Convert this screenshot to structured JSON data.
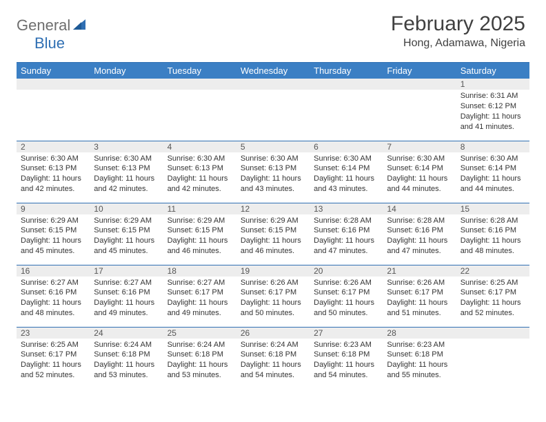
{
  "brand": {
    "part1": "General",
    "part2": "Blue"
  },
  "title": "February 2025",
  "location": "Hong, Adamawa, Nigeria",
  "colors": {
    "header_bg": "#3b7fc4",
    "header_text": "#ffffff",
    "rule": "#2f6fb3",
    "daynum_bg": "#ededed",
    "text": "#333333",
    "logo_gray": "#6e6e6e",
    "logo_blue": "#2f6fb3"
  },
  "day_headers": [
    "Sunday",
    "Monday",
    "Tuesday",
    "Wednesday",
    "Thursday",
    "Friday",
    "Saturday"
  ],
  "weeks": [
    [
      {
        "n": "",
        "sr": "",
        "ss": "",
        "dl": ""
      },
      {
        "n": "",
        "sr": "",
        "ss": "",
        "dl": ""
      },
      {
        "n": "",
        "sr": "",
        "ss": "",
        "dl": ""
      },
      {
        "n": "",
        "sr": "",
        "ss": "",
        "dl": ""
      },
      {
        "n": "",
        "sr": "",
        "ss": "",
        "dl": ""
      },
      {
        "n": "",
        "sr": "",
        "ss": "",
        "dl": ""
      },
      {
        "n": "1",
        "sr": "Sunrise: 6:31 AM",
        "ss": "Sunset: 6:12 PM",
        "dl": "Daylight: 11 hours and 41 minutes."
      }
    ],
    [
      {
        "n": "2",
        "sr": "Sunrise: 6:30 AM",
        "ss": "Sunset: 6:13 PM",
        "dl": "Daylight: 11 hours and 42 minutes."
      },
      {
        "n": "3",
        "sr": "Sunrise: 6:30 AM",
        "ss": "Sunset: 6:13 PM",
        "dl": "Daylight: 11 hours and 42 minutes."
      },
      {
        "n": "4",
        "sr": "Sunrise: 6:30 AM",
        "ss": "Sunset: 6:13 PM",
        "dl": "Daylight: 11 hours and 42 minutes."
      },
      {
        "n": "5",
        "sr": "Sunrise: 6:30 AM",
        "ss": "Sunset: 6:13 PM",
        "dl": "Daylight: 11 hours and 43 minutes."
      },
      {
        "n": "6",
        "sr": "Sunrise: 6:30 AM",
        "ss": "Sunset: 6:14 PM",
        "dl": "Daylight: 11 hours and 43 minutes."
      },
      {
        "n": "7",
        "sr": "Sunrise: 6:30 AM",
        "ss": "Sunset: 6:14 PM",
        "dl": "Daylight: 11 hours and 44 minutes."
      },
      {
        "n": "8",
        "sr": "Sunrise: 6:30 AM",
        "ss": "Sunset: 6:14 PM",
        "dl": "Daylight: 11 hours and 44 minutes."
      }
    ],
    [
      {
        "n": "9",
        "sr": "Sunrise: 6:29 AM",
        "ss": "Sunset: 6:15 PM",
        "dl": "Daylight: 11 hours and 45 minutes."
      },
      {
        "n": "10",
        "sr": "Sunrise: 6:29 AM",
        "ss": "Sunset: 6:15 PM",
        "dl": "Daylight: 11 hours and 45 minutes."
      },
      {
        "n": "11",
        "sr": "Sunrise: 6:29 AM",
        "ss": "Sunset: 6:15 PM",
        "dl": "Daylight: 11 hours and 46 minutes."
      },
      {
        "n": "12",
        "sr": "Sunrise: 6:29 AM",
        "ss": "Sunset: 6:15 PM",
        "dl": "Daylight: 11 hours and 46 minutes."
      },
      {
        "n": "13",
        "sr": "Sunrise: 6:28 AM",
        "ss": "Sunset: 6:16 PM",
        "dl": "Daylight: 11 hours and 47 minutes."
      },
      {
        "n": "14",
        "sr": "Sunrise: 6:28 AM",
        "ss": "Sunset: 6:16 PM",
        "dl": "Daylight: 11 hours and 47 minutes."
      },
      {
        "n": "15",
        "sr": "Sunrise: 6:28 AM",
        "ss": "Sunset: 6:16 PM",
        "dl": "Daylight: 11 hours and 48 minutes."
      }
    ],
    [
      {
        "n": "16",
        "sr": "Sunrise: 6:27 AM",
        "ss": "Sunset: 6:16 PM",
        "dl": "Daylight: 11 hours and 48 minutes."
      },
      {
        "n": "17",
        "sr": "Sunrise: 6:27 AM",
        "ss": "Sunset: 6:16 PM",
        "dl": "Daylight: 11 hours and 49 minutes."
      },
      {
        "n": "18",
        "sr": "Sunrise: 6:27 AM",
        "ss": "Sunset: 6:17 PM",
        "dl": "Daylight: 11 hours and 49 minutes."
      },
      {
        "n": "19",
        "sr": "Sunrise: 6:26 AM",
        "ss": "Sunset: 6:17 PM",
        "dl": "Daylight: 11 hours and 50 minutes."
      },
      {
        "n": "20",
        "sr": "Sunrise: 6:26 AM",
        "ss": "Sunset: 6:17 PM",
        "dl": "Daylight: 11 hours and 50 minutes."
      },
      {
        "n": "21",
        "sr": "Sunrise: 6:26 AM",
        "ss": "Sunset: 6:17 PM",
        "dl": "Daylight: 11 hours and 51 minutes."
      },
      {
        "n": "22",
        "sr": "Sunrise: 6:25 AM",
        "ss": "Sunset: 6:17 PM",
        "dl": "Daylight: 11 hours and 52 minutes."
      }
    ],
    [
      {
        "n": "23",
        "sr": "Sunrise: 6:25 AM",
        "ss": "Sunset: 6:17 PM",
        "dl": "Daylight: 11 hours and 52 minutes."
      },
      {
        "n": "24",
        "sr": "Sunrise: 6:24 AM",
        "ss": "Sunset: 6:18 PM",
        "dl": "Daylight: 11 hours and 53 minutes."
      },
      {
        "n": "25",
        "sr": "Sunrise: 6:24 AM",
        "ss": "Sunset: 6:18 PM",
        "dl": "Daylight: 11 hours and 53 minutes."
      },
      {
        "n": "26",
        "sr": "Sunrise: 6:24 AM",
        "ss": "Sunset: 6:18 PM",
        "dl": "Daylight: 11 hours and 54 minutes."
      },
      {
        "n": "27",
        "sr": "Sunrise: 6:23 AM",
        "ss": "Sunset: 6:18 PM",
        "dl": "Daylight: 11 hours and 54 minutes."
      },
      {
        "n": "28",
        "sr": "Sunrise: 6:23 AM",
        "ss": "Sunset: 6:18 PM",
        "dl": "Daylight: 11 hours and 55 minutes."
      },
      {
        "n": "",
        "sr": "",
        "ss": "",
        "dl": ""
      }
    ]
  ]
}
